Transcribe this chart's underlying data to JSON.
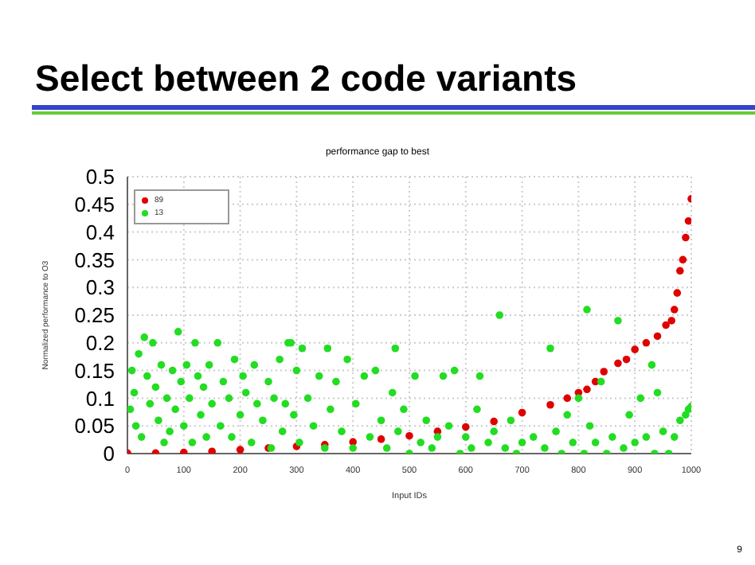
{
  "chart_data": {
    "type": "scatter",
    "title": "Select between 2 code variants",
    "subtitle": "performance gap to best",
    "xlabel": "Input IDs",
    "ylabel": "Normalized performance to O3",
    "annotations": [
      "9"
    ],
    "xlim": [
      0,
      1000
    ],
    "xticks": [
      0,
      100,
      200,
      300,
      400,
      500,
      600,
      700,
      800,
      900,
      1000
    ],
    "ylim": [
      0,
      0.5
    ],
    "yticks": [
      0,
      0.05,
      0.1,
      0.15,
      0.2,
      0.25,
      0.3,
      0.35,
      0.4,
      0.45,
      0.5
    ],
    "grid": true,
    "legend": "top left",
    "marker": "circle",
    "series": [
      {
        "name": "89",
        "color": "#e00000",
        "x": [
          0,
          50,
          100,
          150,
          200,
          250,
          300,
          350,
          400,
          450,
          500,
          550,
          600,
          650,
          700,
          750,
          780,
          800,
          815,
          830,
          845,
          870,
          885,
          900,
          920,
          940,
          955,
          965,
          970,
          975,
          980,
          985,
          990,
          995,
          1000
        ],
        "values": [
          0.001,
          0.001,
          0.002,
          0.004,
          0.007,
          0.01,
          0.013,
          0.016,
          0.021,
          0.026,
          0.032,
          0.04,
          0.048,
          0.058,
          0.074,
          0.088,
          0.1,
          0.11,
          0.116,
          0.13,
          0.148,
          0.163,
          0.17,
          0.188,
          0.2,
          0.212,
          0.232,
          0.24,
          0.26,
          0.29,
          0.33,
          0.35,
          0.39,
          0.42,
          0.46
        ]
      },
      {
        "name": "13",
        "color": "#22dd22",
        "x": [
          5,
          8,
          12,
          15,
          20,
          25,
          30,
          35,
          40,
          45,
          50,
          55,
          60,
          65,
          70,
          75,
          80,
          85,
          90,
          95,
          100,
          105,
          110,
          115,
          120,
          125,
          130,
          135,
          140,
          145,
          150,
          160,
          165,
          170,
          180,
          185,
          190,
          200,
          205,
          210,
          220,
          225,
          230,
          240,
          250,
          255,
          260,
          270,
          275,
          280,
          285,
          290,
          295,
          300,
          305,
          310,
          320,
          330,
          340,
          350,
          355,
          360,
          370,
          380,
          390,
          400,
          405,
          420,
          430,
          440,
          450,
          460,
          470,
          475,
          480,
          490,
          500,
          510,
          520,
          530,
          540,
          550,
          560,
          570,
          580,
          590,
          600,
          610,
          620,
          625,
          640,
          650,
          660,
          670,
          680,
          690,
          700,
          720,
          740,
          750,
          760,
          770,
          780,
          790,
          800,
          810,
          815,
          820,
          830,
          840,
          850,
          860,
          870,
          880,
          890,
          900,
          910,
          920,
          930,
          935,
          940,
          950,
          960,
          970,
          980,
          990,
          995,
          1000
        ],
        "values": [
          0.08,
          0.15,
          0.11,
          0.05,
          0.18,
          0.03,
          0.21,
          0.14,
          0.09,
          0.2,
          0.12,
          0.06,
          0.16,
          0.02,
          0.1,
          0.04,
          0.15,
          0.08,
          0.22,
          0.13,
          0.05,
          0.16,
          0.1,
          0.02,
          0.2,
          0.14,
          0.07,
          0.12,
          0.03,
          0.16,
          0.09,
          0.2,
          0.05,
          0.13,
          0.1,
          0.03,
          0.17,
          0.07,
          0.14,
          0.11,
          0.02,
          0.16,
          0.09,
          0.06,
          0.13,
          0.01,
          0.1,
          0.17,
          0.04,
          0.09,
          0.2,
          0.2,
          0.07,
          0.15,
          0.02,
          0.19,
          0.1,
          0.05,
          0.14,
          0.01,
          0.19,
          0.08,
          0.13,
          0.04,
          0.17,
          0.01,
          0.09,
          0.14,
          0.03,
          0.15,
          0.06,
          0.01,
          0.11,
          0.19,
          0.04,
          0.08,
          0.0,
          0.14,
          0.02,
          0.06,
          0.01,
          0.03,
          0.14,
          0.05,
          0.15,
          0.0,
          0.03,
          0.01,
          0.08,
          0.14,
          0.02,
          0.04,
          0.25,
          0.01,
          0.06,
          0.0,
          0.02,
          0.03,
          0.01,
          0.19,
          0.04,
          0.0,
          0.07,
          0.02,
          0.1,
          0.0,
          0.26,
          0.05,
          0.02,
          0.13,
          0.0,
          0.03,
          0.24,
          0.01,
          0.07,
          0.02,
          0.1,
          0.03,
          0.16,
          0.0,
          0.11,
          0.04,
          0.0,
          0.03,
          0.06,
          0.07,
          0.08,
          0.085
        ]
      }
    ]
  }
}
